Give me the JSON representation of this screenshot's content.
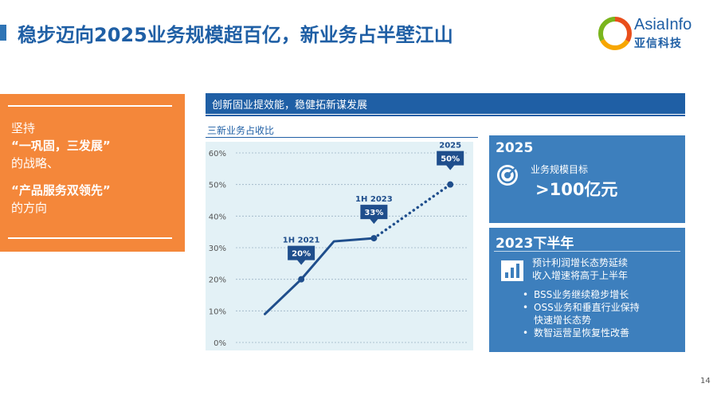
{
  "slide": {
    "title": "稳步迈向2025业务规模超百亿，新业务占半壁江山",
    "page_number": "14"
  },
  "logo": {
    "name_en": "AsiaInfo",
    "name_cn": "亚信科技",
    "colors": [
      "#e94e1b",
      "#f7a600",
      "#7ab51d",
      "#1f5fa5"
    ]
  },
  "left_panel": {
    "line1": "坚持",
    "quote1": "“一巩固，三发展”",
    "line2": "的战略、",
    "quote2": "“产品服务双领先”",
    "line3": "的方向",
    "color": "#f4873a"
  },
  "header": {
    "text": "创新固业提效能，稳健拓新谋发展"
  },
  "chart_data": {
    "type": "line",
    "title": "三新业务占收比",
    "ylim": [
      0,
      60
    ],
    "y_ticks": [
      "0%",
      "10%",
      "20%",
      "30%",
      "40%",
      "50%",
      "60%"
    ],
    "grid": true,
    "series": [
      {
        "style": "solid",
        "points": [
          {
            "x": 0,
            "y": 9
          },
          {
            "x": 1,
            "y": 20
          },
          {
            "x": 1.9,
            "y": 32
          },
          {
            "x": 3,
            "y": 33
          }
        ]
      },
      {
        "style": "dotted",
        "points": [
          {
            "x": 3,
            "y": 33
          },
          {
            "x": 5.1,
            "y": 50
          }
        ]
      }
    ],
    "callouts": [
      {
        "period": "1H 2021",
        "value": "20%",
        "x": 1,
        "y": 20
      },
      {
        "period": "1H 2023",
        "value": "33%",
        "x": 3,
        "y": 33
      },
      {
        "period": "2025",
        "value": "50%",
        "x": 5.1,
        "y": 50
      }
    ]
  },
  "box_2025": {
    "year": "2025",
    "label": "业务规模目标",
    "value": ">100亿元",
    "icon": "target-icon"
  },
  "box_2023": {
    "title": "2023下半年",
    "profit_line1": "预计利润增长态势延续",
    "profit_line2": "收入增速将高于上半年",
    "icon": "bar-chart-icon",
    "bullets": [
      {
        "lines": [
          "BSS业务继续稳步增长"
        ]
      },
      {
        "lines": [
          "OSS业务和垂直行业保持",
          "快速增长态势"
        ]
      },
      {
        "lines": [
          "数智运营呈恢复性改善"
        ]
      }
    ],
    "bullet_char": "•"
  }
}
